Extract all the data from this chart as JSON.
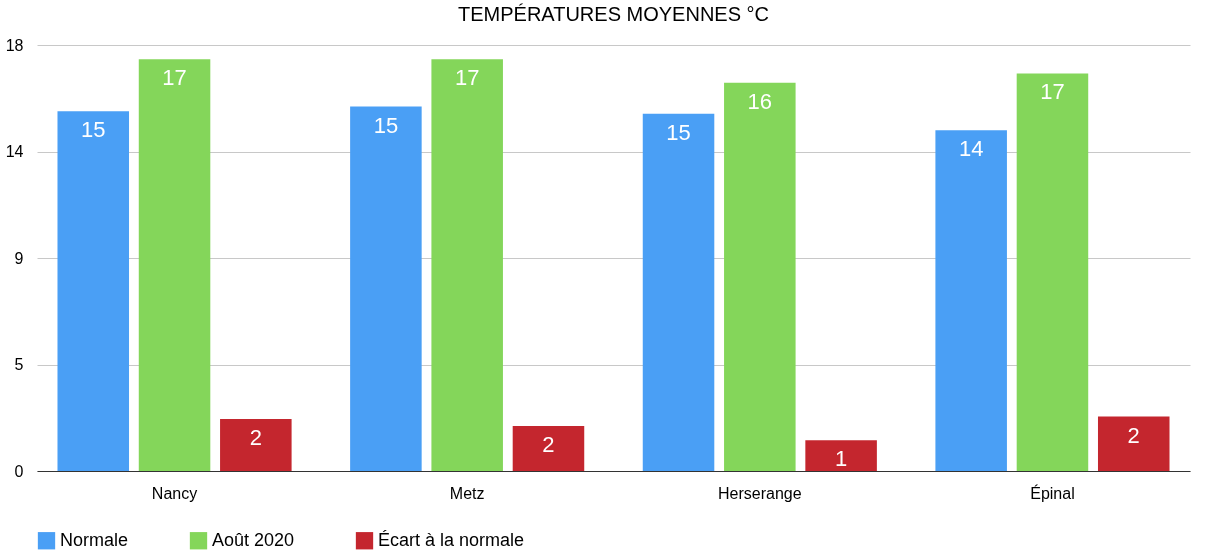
{
  "chart_data": {
    "type": "bar",
    "title": "TEMPÉRATURES MOYENNES °C",
    "categories": [
      "Nancy",
      "Metz",
      "Herserange",
      "Épinal"
    ],
    "series": [
      {
        "name": "Normale",
        "color": "#4a9ff5",
        "values": [
          15.2,
          15.4,
          15.1,
          14.4
        ],
        "value_labels": [
          "15",
          "15",
          "15",
          "14"
        ]
      },
      {
        "name": "Août 2020",
        "color": "#84d65a",
        "values": [
          17.4,
          17.4,
          16.4,
          16.8
        ],
        "value_labels": [
          "17",
          "17",
          "16",
          "17"
        ]
      },
      {
        "name": "Écart à la normale",
        "color": "#c4262e",
        "values": [
          2.2,
          1.9,
          1.3,
          2.3
        ],
        "value_labels": [
          "2",
          "2",
          "1",
          "2"
        ]
      }
    ],
    "ylim": [
      0,
      18
    ],
    "yticks": [
      0,
      {
        "value": 4.5,
        "label": "5"
      },
      9,
      {
        "value": 13.5,
        "label": "14"
      },
      18
    ],
    "grid": "y",
    "legend": "bottom"
  }
}
